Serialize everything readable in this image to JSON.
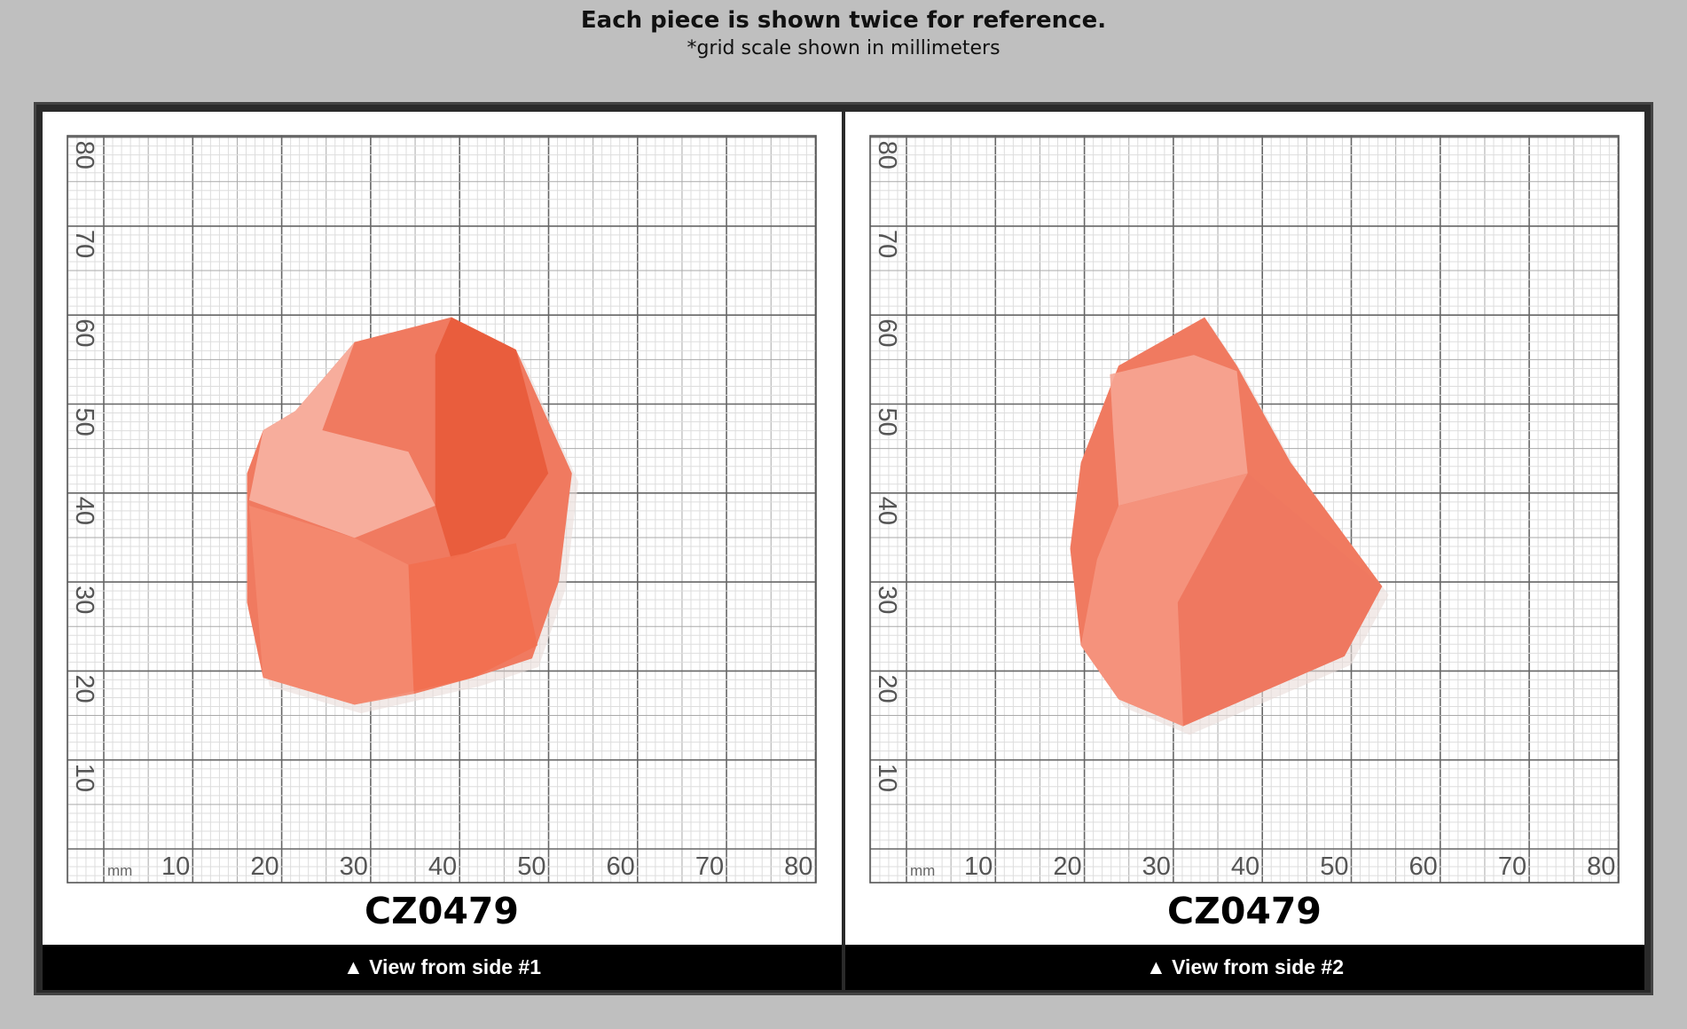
{
  "header": {
    "title": "Each piece is shown twice for reference.",
    "subtitle": "*grid scale shown in millimeters"
  },
  "panels": [
    {
      "grid": {
        "unit": "mm",
        "x_labels": [
          10,
          20,
          30,
          40,
          50,
          60,
          70,
          80
        ],
        "y_labels": [
          10,
          20,
          30,
          40,
          50,
          60,
          70,
          80
        ]
      },
      "label": "CZ0479",
      "caption": "▲ View from side #1"
    },
    {
      "grid": {
        "unit": "mm",
        "x_labels": [
          10,
          20,
          30,
          40,
          50,
          60,
          70,
          80
        ],
        "y_labels": [
          10,
          20,
          30,
          40,
          50,
          60,
          70,
          80
        ]
      },
      "label": "CZ0479",
      "caption": "▲ View from side #2"
    }
  ]
}
